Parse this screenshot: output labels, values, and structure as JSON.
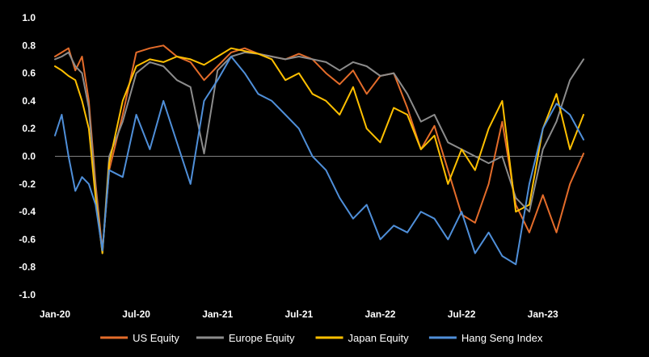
{
  "chart_data": {
    "type": "line",
    "title": "",
    "xlabel": "",
    "ylabel": "",
    "ylim": [
      -1.0,
      1.0
    ],
    "yticks": [
      1.0,
      0.8,
      0.6,
      0.4,
      0.2,
      0.0,
      -0.2,
      -0.4,
      -0.6,
      -0.8,
      -1.0
    ],
    "ytick_labels": [
      "1.0",
      "0.8",
      "0.6",
      "0.4",
      "0.2",
      "0.0",
      "-0.2",
      "-0.4",
      "-0.6",
      "-0.8",
      "-1.0"
    ],
    "xlim": [
      0,
      39
    ],
    "x_tick_positions": [
      0,
      6,
      12,
      18,
      24,
      30,
      36
    ],
    "x_tick_labels": [
      "Jan-20",
      "Jul-20",
      "Jan-21",
      "Jul-21",
      "Jan-22",
      "Jul-22",
      "Jan-23"
    ],
    "grid": false,
    "zero_line": true,
    "legend_position": "bottom",
    "colors": {
      "background": "#000000",
      "text": "#ffffff",
      "axis": "#7f7f7f"
    },
    "series": [
      {
        "name": "US Equity",
        "color": "#e46c2a",
        "x": [
          0,
          0.5,
          1,
          1.5,
          2,
          2.5,
          3,
          3.5,
          4,
          5,
          6,
          7,
          8,
          9,
          10,
          11,
          12,
          13,
          14,
          15,
          16,
          17,
          18,
          19,
          20,
          21,
          22,
          23,
          24,
          25,
          26,
          27,
          28,
          29,
          30,
          31,
          32,
          33,
          34,
          35,
          36,
          37,
          38,
          39
        ],
        "values": [
          0.72,
          0.75,
          0.78,
          0.62,
          0.72,
          0.4,
          -0.2,
          -0.68,
          -0.1,
          0.3,
          0.75,
          0.78,
          0.8,
          0.72,
          0.68,
          0.55,
          0.65,
          0.75,
          0.78,
          0.74,
          0.72,
          0.7,
          0.74,
          0.7,
          0.6,
          0.52,
          0.62,
          0.45,
          0.58,
          0.6,
          0.35,
          0.05,
          0.22,
          -0.1,
          -0.42,
          -0.48,
          -0.2,
          0.25,
          -0.35,
          -0.55,
          -0.28,
          -0.55,
          -0.2,
          0.02
        ]
      },
      {
        "name": "Europe Equity",
        "color": "#8c8c8c",
        "x": [
          0,
          0.5,
          1,
          1.5,
          2,
          2.5,
          3,
          3.5,
          4,
          5,
          6,
          7,
          8,
          9,
          10,
          11,
          12,
          13,
          14,
          15,
          16,
          17,
          18,
          19,
          20,
          21,
          22,
          23,
          24,
          25,
          26,
          27,
          28,
          29,
          30,
          31,
          32,
          33,
          34,
          35,
          36,
          37,
          38,
          39
        ],
        "values": [
          0.7,
          0.72,
          0.75,
          0.65,
          0.6,
          0.35,
          -0.25,
          -0.7,
          0.0,
          0.25,
          0.6,
          0.68,
          0.65,
          0.55,
          0.5,
          0.02,
          0.62,
          0.72,
          0.75,
          0.74,
          0.72,
          0.7,
          0.72,
          0.7,
          0.68,
          0.62,
          0.68,
          0.65,
          0.58,
          0.6,
          0.45,
          0.25,
          0.3,
          0.1,
          0.05,
          0.0,
          -0.05,
          0.0,
          -0.3,
          -0.4,
          0.05,
          0.25,
          0.55,
          0.7
        ]
      },
      {
        "name": "Japan Equity",
        "color": "#ffc000",
        "x": [
          0,
          0.5,
          1,
          1.5,
          2,
          2.5,
          3,
          3.5,
          4,
          5,
          6,
          7,
          8,
          9,
          10,
          11,
          12,
          13,
          14,
          15,
          16,
          17,
          18,
          19,
          20,
          21,
          22,
          23,
          24,
          25,
          26,
          27,
          28,
          29,
          30,
          31,
          32,
          33,
          34,
          35,
          36,
          37,
          38,
          39
        ],
        "values": [
          0.65,
          0.62,
          0.58,
          0.55,
          0.4,
          0.2,
          -0.3,
          -0.7,
          -0.05,
          0.4,
          0.65,
          0.7,
          0.68,
          0.72,
          0.7,
          0.66,
          0.72,
          0.78,
          0.76,
          0.74,
          0.7,
          0.55,
          0.6,
          0.45,
          0.4,
          0.3,
          0.5,
          0.2,
          0.1,
          0.35,
          0.3,
          0.05,
          0.15,
          -0.2,
          0.05,
          -0.1,
          0.2,
          0.4,
          -0.4,
          -0.35,
          0.2,
          0.45,
          0.05,
          0.3
        ]
      },
      {
        "name": "Hang Seng Index",
        "color": "#4f8fd9",
        "x": [
          0,
          0.5,
          1,
          1.5,
          2,
          2.5,
          3,
          3.5,
          4,
          5,
          6,
          7,
          8,
          9,
          10,
          11,
          12,
          13,
          14,
          15,
          16,
          17,
          18,
          19,
          20,
          21,
          22,
          23,
          24,
          25,
          26,
          27,
          28,
          29,
          30,
          31,
          32,
          33,
          34,
          35,
          36,
          37,
          38,
          39
        ],
        "values": [
          0.15,
          0.3,
          0.0,
          -0.25,
          -0.15,
          -0.2,
          -0.35,
          -0.68,
          -0.1,
          -0.15,
          0.3,
          0.05,
          0.4,
          0.1,
          -0.2,
          0.4,
          0.55,
          0.72,
          0.6,
          0.45,
          0.4,
          0.3,
          0.2,
          0.0,
          -0.1,
          -0.3,
          -0.45,
          -0.35,
          -0.6,
          -0.5,
          -0.55,
          -0.4,
          -0.45,
          -0.6,
          -0.4,
          -0.7,
          -0.55,
          -0.72,
          -0.78,
          -0.2,
          0.2,
          0.38,
          0.3,
          0.12
        ]
      }
    ]
  }
}
